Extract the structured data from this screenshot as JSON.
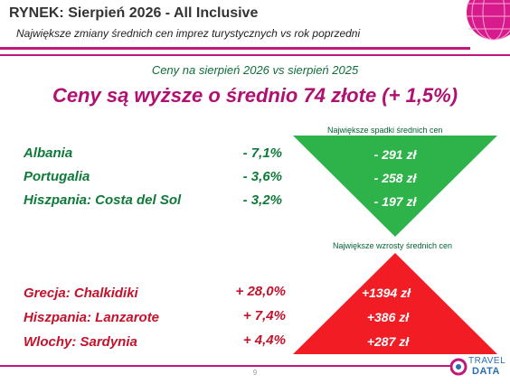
{
  "header": {
    "title": "RYNEK: Sierpień 2026 - All Inclusive",
    "subtitle": "Największe zmiany średnich cen imprez turystycznych vs rok poprzedni"
  },
  "compare_label": "Ceny na sierpień 2026 vs sierpień 2025",
  "headline": "Ceny są wyższe o średnio 74 złote (+ 1,5%)",
  "decreases": {
    "label": "Największe spadki średnich cen",
    "color": "#2db34a",
    "rows": [
      {
        "name": "Albania",
        "pct": "- 7,1%",
        "value": "- 291 zł"
      },
      {
        "name": "Portugalia",
        "pct": "- 3,6%",
        "value": "- 258 zł"
      },
      {
        "name": "Hiszpania: Costa del Sol",
        "pct": "- 3,2%",
        "value": "- 197 zł"
      }
    ]
  },
  "increases": {
    "label": "Największe wzrosty średnich cen",
    "color": "#f21c24",
    "rows": [
      {
        "name": "Grecja: Chalkidiki",
        "pct": "+ 28,0%",
        "value": "+1394 zł"
      },
      {
        "name": "Hiszpania: Lanzarote",
        "pct": "+ 7,4%",
        "value": "+386 zł"
      },
      {
        "name": "Wlochy: Sardynia",
        "pct": "+ 4,4%",
        "value": "+287 zł"
      }
    ]
  },
  "footer": {
    "page_number": "9",
    "logo_text_top": "TRAVEL",
    "logo_text_bottom": "DATA"
  },
  "colors": {
    "accent": "#c0187a",
    "headline": "#b01070",
    "green_text": "#0f7a3a",
    "red_text": "#c4122b"
  }
}
